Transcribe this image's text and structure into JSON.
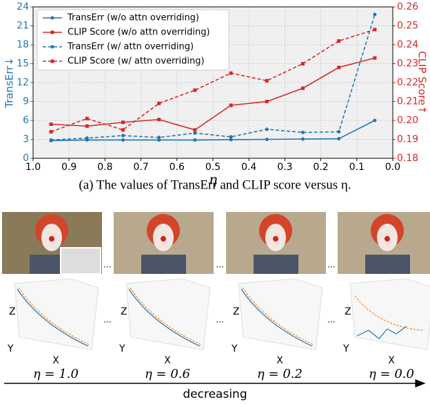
{
  "chart_data": {
    "type": "line",
    "x_label": "η",
    "y_label": "TransErr↓",
    "y2_label": "CLIP Score↑",
    "x": [
      0.95,
      0.85,
      0.75,
      0.65,
      0.55,
      0.45,
      0.35,
      0.25,
      0.15,
      0.05
    ],
    "xlim": [
      1.0,
      0.0
    ],
    "xticks": [
      {
        "value": 1.0,
        "label": "1.0"
      },
      {
        "value": 0.9,
        "label": "0.9"
      },
      {
        "value": 0.8,
        "label": "0.8"
      },
      {
        "value": 0.7,
        "label": "0.7"
      },
      {
        "value": 0.6,
        "label": "0.6"
      },
      {
        "value": 0.5,
        "label": "0.5"
      },
      {
        "value": 0.4,
        "label": "0.4"
      },
      {
        "value": 0.3,
        "label": "0.3"
      },
      {
        "value": 0.2,
        "label": "0.2"
      },
      {
        "value": 0.1,
        "label": "0.1"
      },
      {
        "value": 0.0,
        "label": "0.0"
      }
    ],
    "ylim": [
      0,
      24
    ],
    "yticks": [
      0,
      3,
      6,
      9,
      12,
      15,
      18,
      21,
      24
    ],
    "y2lim": [
      0.18,
      0.26
    ],
    "y2ticks": [
      0.18,
      0.19,
      {
        "value": 0.2,
        "label": "0.20"
      },
      0.21,
      0.22,
      0.23,
      0.24,
      0.25,
      0.26
    ],
    "grid": true,
    "legend": "upper-left",
    "series": [
      {
        "name": "TransErr (w/o attn overriding)",
        "color": "#1f77b4",
        "linestyle": "solid",
        "marker": "circle",
        "values": [
          2.8,
          2.9,
          2.9,
          2.9,
          2.9,
          2.95,
          3.0,
          3.05,
          3.1,
          6.0
        ]
      },
      {
        "name": "CLIP Score (w/o attn overriding)",
        "color": "#d62728",
        "linestyle": "solid",
        "marker": "square",
        "axis": "y2",
        "values": [
          0.198,
          0.197,
          0.199,
          0.2005,
          0.195,
          0.208,
          0.21,
          0.217,
          0.228,
          0.233
        ]
      },
      {
        "name": "TransErr (w/ attn overriding)",
        "color": "#1f77b4",
        "linestyle": "dashed",
        "marker": "circle",
        "values": [
          2.9,
          3.2,
          3.6,
          3.3,
          4.0,
          3.4,
          4.6,
          4.1,
          4.2,
          22.8
        ]
      },
      {
        "name": "CLIP Score (w/ attn overriding)",
        "color": "#d62728",
        "linestyle": "dashed",
        "marker": "square",
        "axis": "y2",
        "values": [
          0.194,
          0.201,
          0.195,
          0.209,
          0.216,
          0.225,
          0.221,
          0.23,
          0.242,
          0.248
        ]
      }
    ]
  },
  "caption": "(a) The values of TransErr and CLIP score versus η.",
  "separator": "...",
  "plot_axes": {
    "x": "X",
    "y": "Y",
    "z": "Z"
  },
  "panels": [
    {
      "eta": "η = 1.0"
    },
    {
      "eta": "η = 0.6"
    },
    {
      "eta": "η = 0.2"
    },
    {
      "eta": "η = 0.0"
    }
  ],
  "arrow_label": "decreasing"
}
